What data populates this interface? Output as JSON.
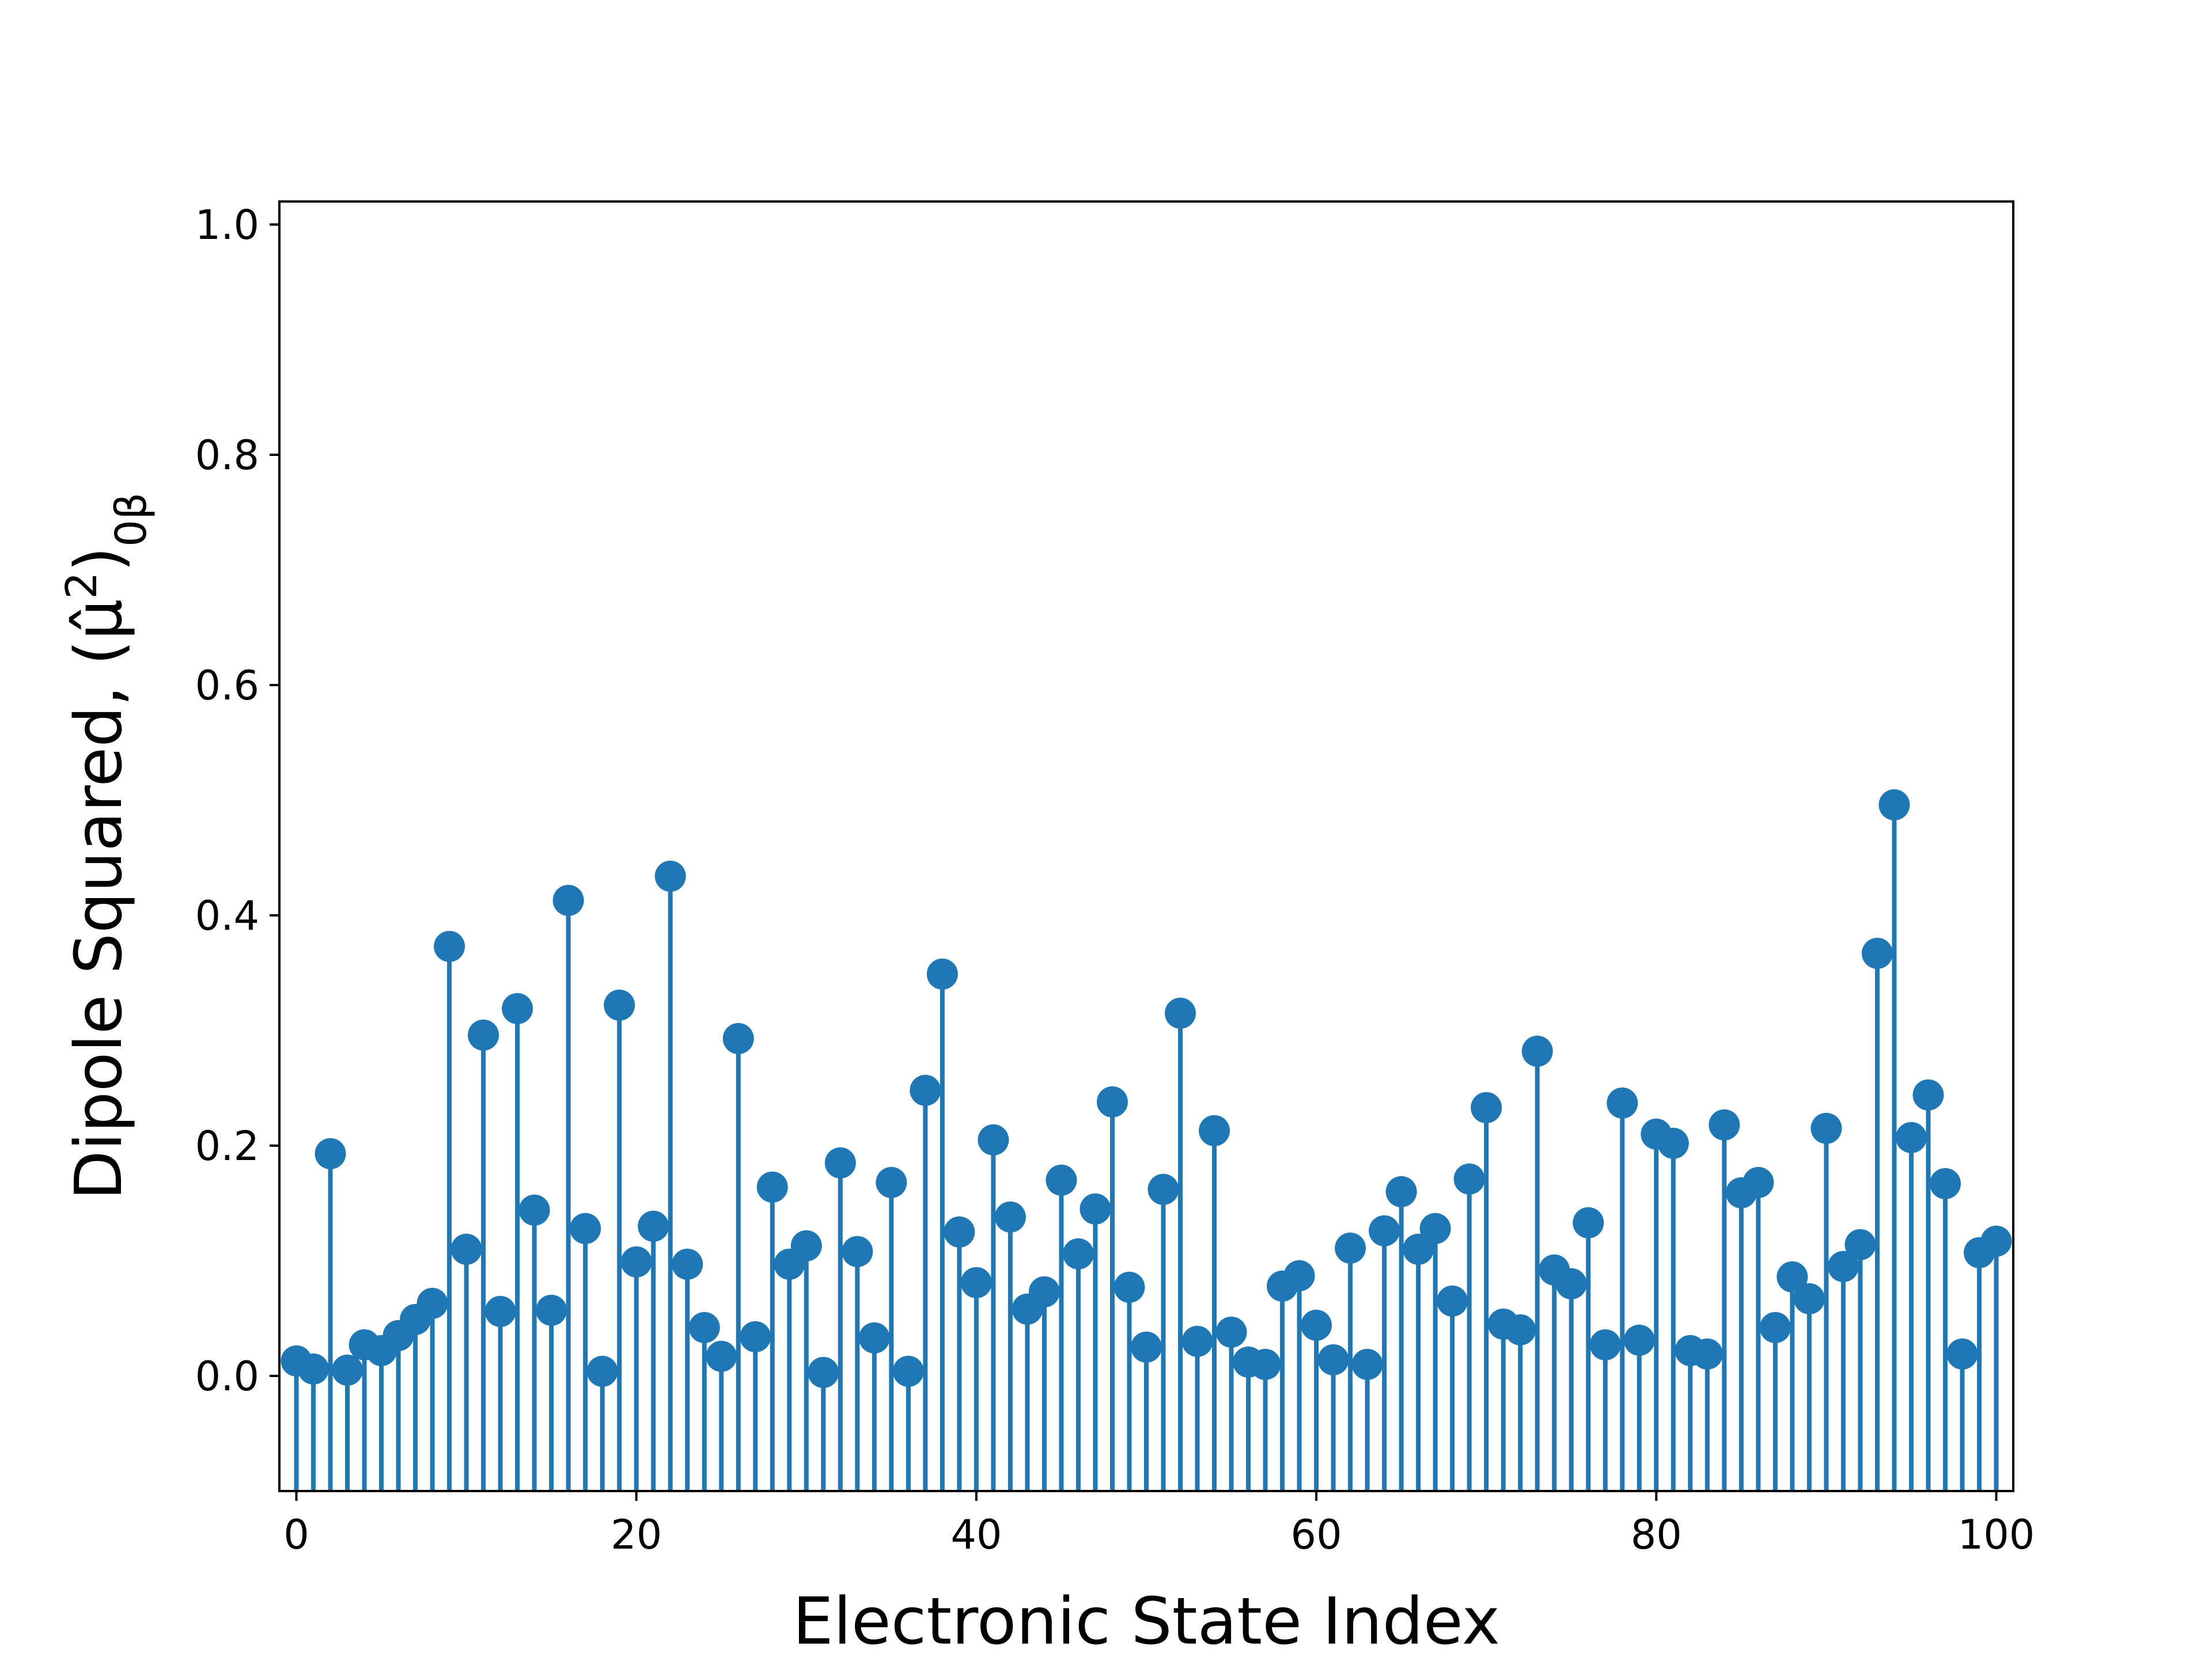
{
  "chart_data": {
    "type": "stem",
    "title": "",
    "xlabel": "Electronic State Index",
    "ylabel": "Dipole Squared, ",
    "ylabel_math": {
      "base": "(μ̂",
      "sup": "2",
      "close": ")",
      "sub": "0β"
    },
    "xlim": [
      -1,
      101
    ],
    "ylim": [
      -0.1,
      1.02
    ],
    "xticks": [
      "0",
      "20",
      "40",
      "60",
      "80",
      "100"
    ],
    "yticks": [
      "0.0",
      "0.2",
      "0.4",
      "0.6",
      "0.8",
      "1.0"
    ],
    "stem_bottom": -0.1,
    "grid": false,
    "legend": false,
    "color": "#1f77b4",
    "x": [
      0,
      1,
      2,
      3,
      4,
      5,
      6,
      7,
      8,
      9,
      10,
      11,
      12,
      13,
      14,
      15,
      16,
      17,
      18,
      19,
      20,
      21,
      22,
      23,
      24,
      25,
      26,
      27,
      28,
      29,
      30,
      31,
      32,
      33,
      34,
      35,
      36,
      37,
      38,
      39,
      40,
      41,
      42,
      43,
      44,
      45,
      46,
      47,
      48,
      49,
      50,
      51,
      52,
      53,
      54,
      55,
      56,
      57,
      58,
      59,
      60,
      61,
      62,
      63,
      64,
      65,
      66,
      67,
      68,
      69,
      70,
      71,
      72,
      73,
      74,
      75,
      76,
      77,
      78,
      79,
      80,
      81,
      82,
      83,
      84,
      85,
      86,
      87,
      88,
      89,
      90,
      91,
      92,
      93,
      94,
      95,
      96,
      97,
      98,
      99,
      100
    ],
    "y": [
      0.013,
      0.006,
      0.193,
      0.005,
      0.027,
      0.022,
      0.035,
      0.049,
      0.063,
      0.373,
      0.11,
      0.296,
      0.056,
      0.319,
      0.144,
      0.057,
      0.413,
      0.128,
      0.004,
      0.322,
      0.099,
      0.13,
      0.434,
      0.097,
      0.042,
      0.017,
      0.293,
      0.034,
      0.164,
      0.097,
      0.113,
      0.003,
      0.185,
      0.108,
      0.033,
      0.168,
      0.004,
      0.248,
      0.349,
      0.125,
      0.081,
      0.205,
      0.138,
      0.058,
      0.073,
      0.17,
      0.106,
      0.145,
      0.238,
      0.077,
      0.025,
      0.162,
      0.315,
      0.03,
      0.213,
      0.038,
      0.012,
      0.01,
      0.078,
      0.087,
      0.044,
      0.014,
      0.111,
      0.01,
      0.126,
      0.16,
      0.11,
      0.128,
      0.065,
      0.171,
      0.233,
      0.045,
      0.04,
      0.282,
      0.092,
      0.08,
      0.133,
      0.027,
      0.237,
      0.031,
      0.21,
      0.202,
      0.022,
      0.019,
      0.218,
      0.159,
      0.168,
      0.042,
      0.086,
      0.067,
      0.215,
      0.095,
      0.114,
      0.367,
      0.496,
      0.207,
      0.244,
      0.167,
      0.019,
      0.107,
      0.117
    ]
  }
}
